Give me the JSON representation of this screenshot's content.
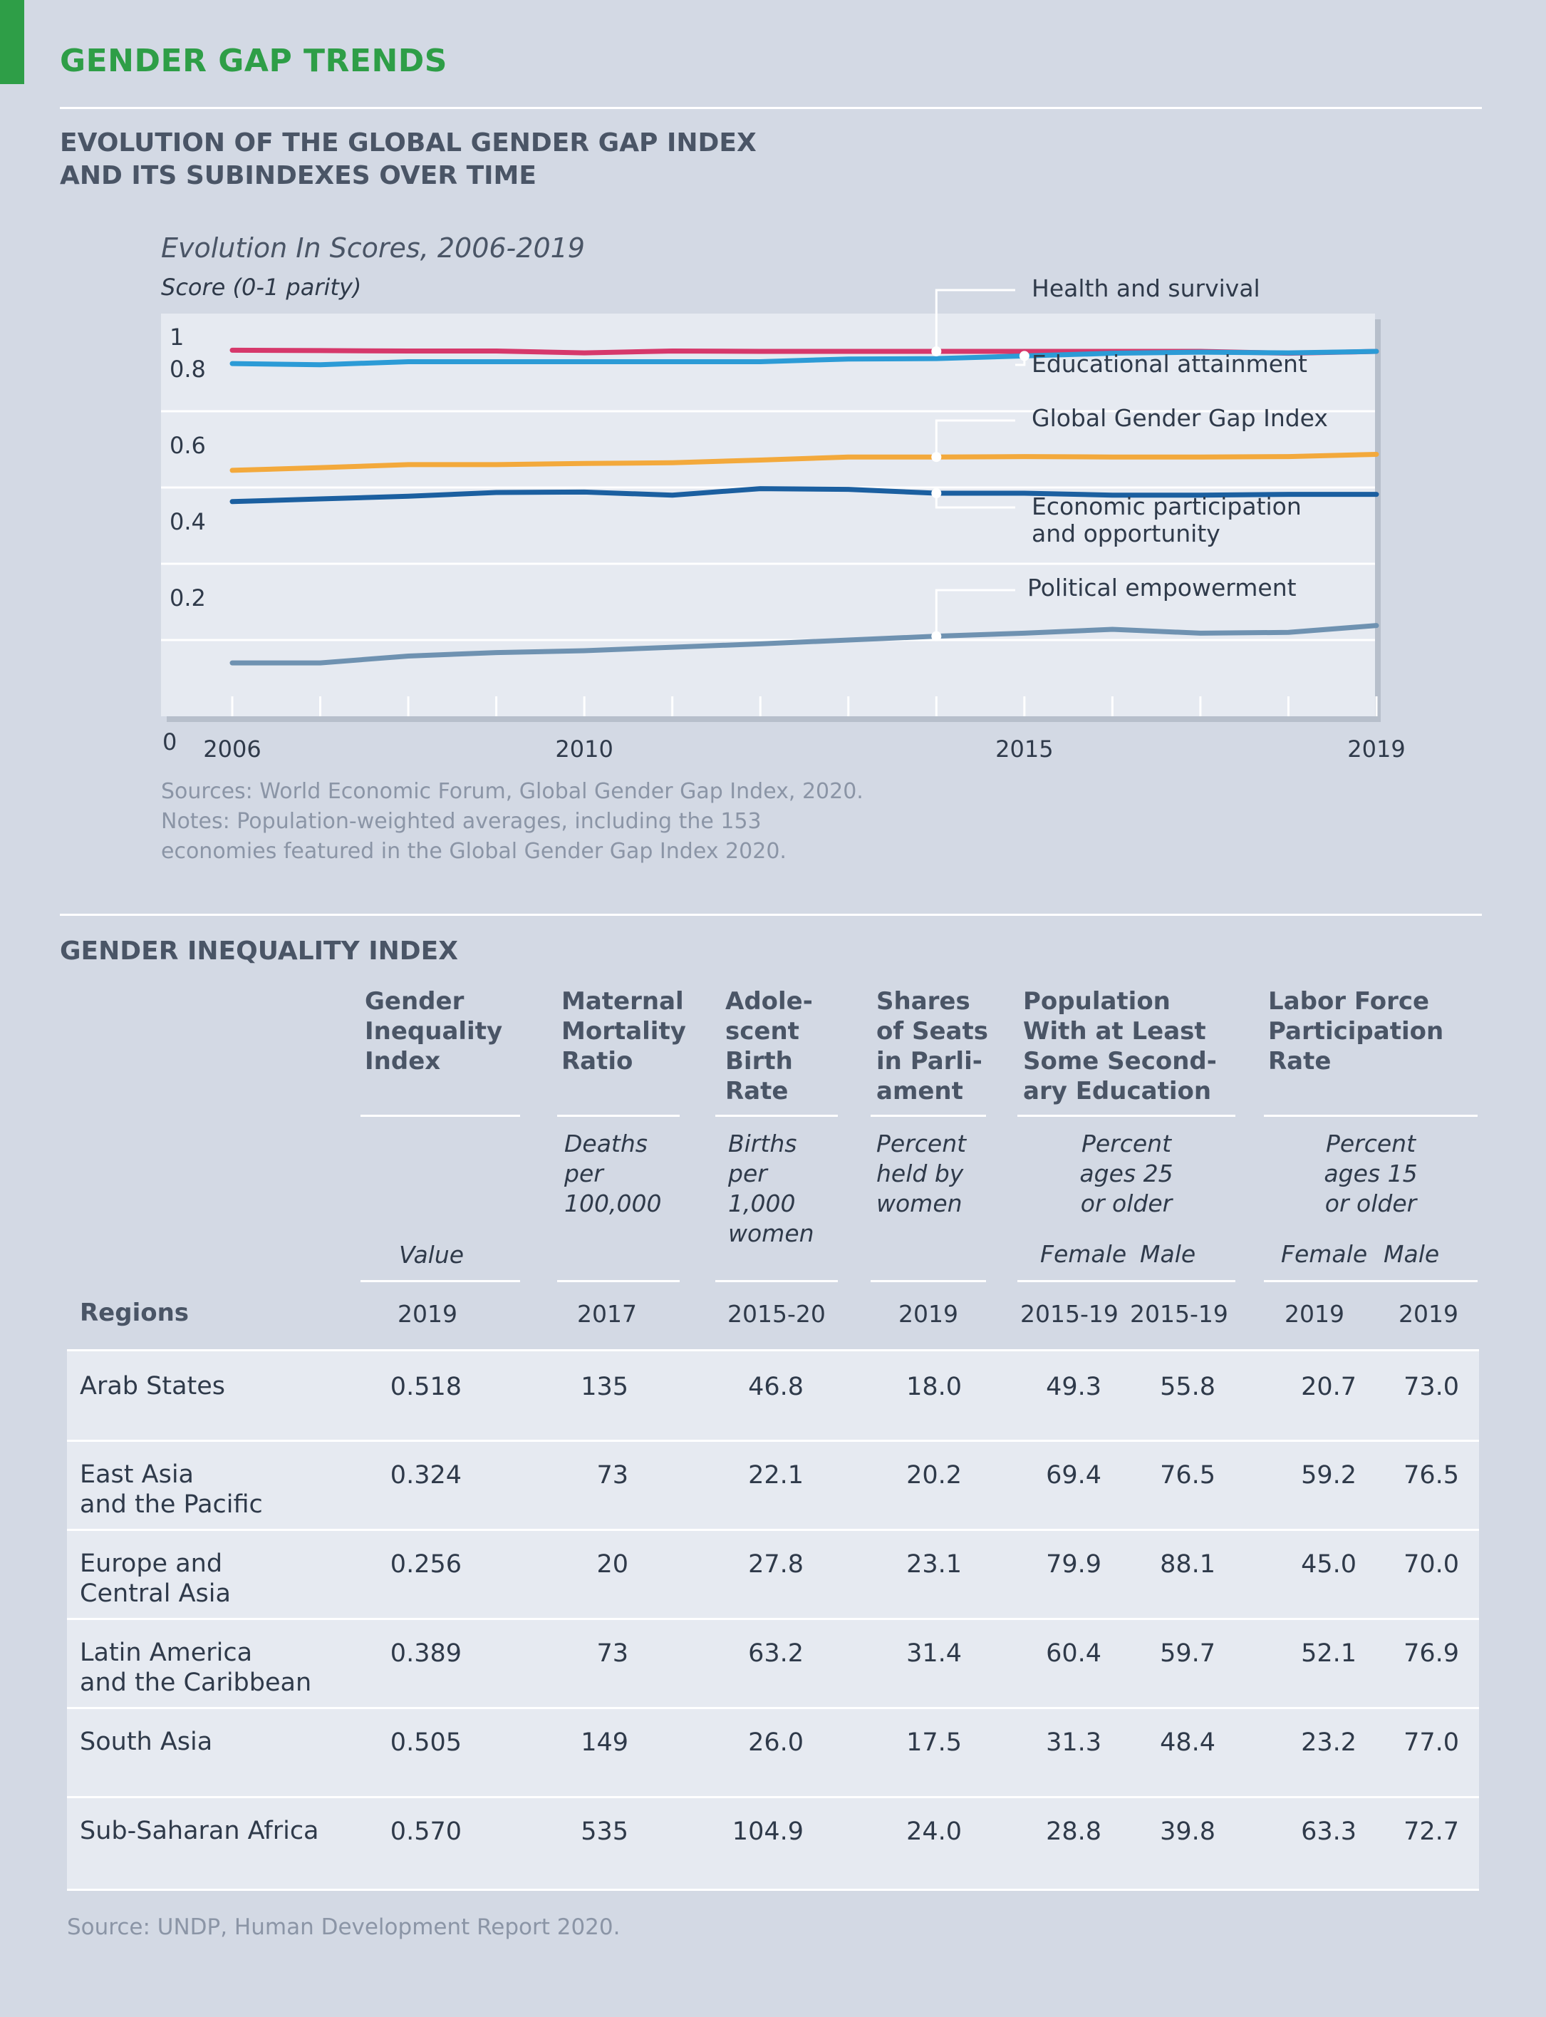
{
  "page_title": "GENDER GAP TRENDS",
  "section1": {
    "title_line1": "EVOLUTION OF THE GLOBAL GENDER GAP INDEX",
    "title_line2": "AND ITS SUBINDEXES OVER TIME"
  },
  "chart_data": {
    "type": "line",
    "title": "Evolution In Scores, 2006-2019",
    "ylabel": "Score (0-1 parity)",
    "xlim": [
      2006,
      2019
    ],
    "ylim": [
      0,
      1
    ],
    "x_ticks": [
      2006,
      2010,
      2015,
      2019
    ],
    "y_ticks": [
      {
        "value": 0,
        "label": "0"
      },
      {
        "value": 0.2,
        "label": "0.2"
      },
      {
        "value": 0.4,
        "label": "0.4"
      },
      {
        "value": 0.6,
        "label": "0.6"
      },
      {
        "value": 0.8,
        "label": "0.8"
      },
      {
        "value": 1,
        "label": "1"
      }
    ],
    "grid": true,
    "x": [
      2006,
      2007,
      2008,
      2009,
      2010,
      2011,
      2012,
      2013,
      2014,
      2015,
      2016,
      2017,
      2018,
      2019
    ],
    "series": [
      {
        "name": "Health and survival",
        "color": "#d6386b",
        "label_year": 2014,
        "label_side": "above",
        "values": [
          0.96,
          0.959,
          0.958,
          0.958,
          0.953,
          0.958,
          0.957,
          0.957,
          0.957,
          0.957,
          0.957,
          0.957,
          0.952,
          0.957
        ]
      },
      {
        "name": "Educational attainment",
        "color": "#2c9bd6",
        "label_year": 2015,
        "label_side": "below",
        "values": [
          0.925,
          0.922,
          0.93,
          0.93,
          0.93,
          0.93,
          0.93,
          0.937,
          0.938,
          0.945,
          0.952,
          0.955,
          0.953,
          0.957
        ]
      },
      {
        "name": "Global Gender Gap Index",
        "color": "#f3a93c",
        "label_year": 2014,
        "label_side": "above",
        "values": [
          0.645,
          0.652,
          0.66,
          0.66,
          0.663,
          0.665,
          0.672,
          0.68,
          0.68,
          0.681,
          0.68,
          0.68,
          0.681,
          0.687
        ]
      },
      {
        "name": "Economic participation and opportunity",
        "line1": "Economic participation",
        "line2": "and opportunity",
        "color": "#1b5fa0",
        "label_year": 2014,
        "label_side": "below",
        "values": [
          0.563,
          0.57,
          0.577,
          0.587,
          0.588,
          0.58,
          0.597,
          0.595,
          0.585,
          0.585,
          0.58,
          0.58,
          0.582,
          0.582
        ]
      },
      {
        "name": "Political empowerment",
        "color": "#6f92b1",
        "label_year": 2014,
        "label_side": "above",
        "values": [
          0.14,
          0.14,
          0.158,
          0.167,
          0.172,
          0.181,
          0.19,
          0.2,
          0.21,
          0.218,
          0.228,
          0.218,
          0.22,
          0.238
        ]
      }
    ]
  },
  "notes": {
    "line1": "Sources: World Economic Forum, Global Gender Gap Index, 2020.",
    "line2": "Notes: Population-weighted averages, including the 153",
    "line3": "economies featured in the Global Gender Gap Index 2020."
  },
  "section2": {
    "title": "GENDER INEQUALITY INDEX"
  },
  "table": {
    "headers": {
      "gii": [
        "Gender",
        "Inequality",
        "Index"
      ],
      "mmr": [
        "Maternal",
        "Mortality",
        "Ratio"
      ],
      "abr": [
        "Adole-",
        "scent",
        "Birth",
        "Rate"
      ],
      "seats": [
        "Shares",
        "of Seats",
        "in Parli-",
        "ament"
      ],
      "edu": [
        "Population",
        "With at Least",
        "Some Second-",
        "ary Education"
      ],
      "lfpr": [
        "Labor Force",
        "Participation",
        "Rate"
      ]
    },
    "units": {
      "gii": "Value",
      "mmr": [
        "Deaths",
        "per",
        "100,000"
      ],
      "abr": [
        "Births",
        "per",
        "1,000",
        "women"
      ],
      "seats": [
        "Percent",
        "held by",
        "women"
      ],
      "edu": [
        "Percent",
        "ages 25",
        "or older"
      ],
      "lfpr": [
        "Percent",
        "ages 15",
        "or older"
      ]
    },
    "sub": {
      "female": "Female",
      "male": "Male"
    },
    "regions_label": "Regions",
    "years": [
      "2019",
      "2017",
      "2015-20",
      "2019",
      "2015-19",
      "2015-19",
      "2019",
      "2019"
    ],
    "rows": [
      {
        "region": [
          "Arab States"
        ],
        "values": [
          "0.518",
          "135",
          "46.8",
          "18.0",
          "49.3",
          "55.8",
          "20.7",
          "73.0"
        ]
      },
      {
        "region": [
          "East Asia",
          "and the Pacific"
        ],
        "values": [
          "0.324",
          "73",
          "22.1",
          "20.2",
          "69.4",
          "76.5",
          "59.2",
          "76.5"
        ]
      },
      {
        "region": [
          "Europe and",
          "Central Asia"
        ],
        "values": [
          "0.256",
          "20",
          "27.8",
          "23.1",
          "79.9",
          "88.1",
          "45.0",
          "70.0"
        ]
      },
      {
        "region": [
          "Latin America",
          "and the Caribbean"
        ],
        "values": [
          "0.389",
          "73",
          "63.2",
          "31.4",
          "60.4",
          "59.7",
          "52.1",
          "76.9"
        ]
      },
      {
        "region": [
          "South Asia"
        ],
        "values": [
          "0.505",
          "149",
          "26.0",
          "17.5",
          "31.3",
          "48.4",
          "23.2",
          "77.0"
        ]
      },
      {
        "region": [
          "Sub-Saharan Africa"
        ],
        "values": [
          "0.570",
          "535",
          "104.9",
          "24.0",
          "28.8",
          "39.8",
          "63.3",
          "72.7"
        ]
      }
    ],
    "source": "Source: UNDP, Human Development Report 2020."
  }
}
